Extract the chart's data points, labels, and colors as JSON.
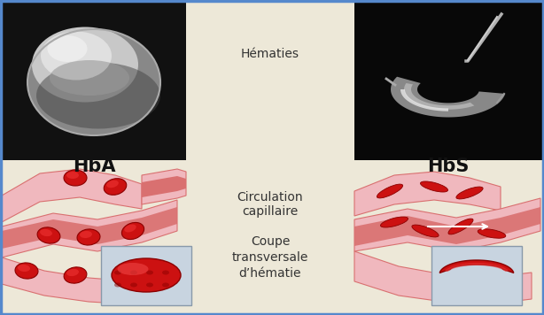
{
  "background_color": "#ede8d8",
  "border_color": "#5588cc",
  "title_hba": "HbA",
  "title_hbs": "HbS",
  "label_hematies": "Hématies",
  "label_circulation": "Circulation\ncapillaire",
  "label_coupe": "Coupe\ntransversale\nd’hématie",
  "top_left_bg": "#111111",
  "top_right_bg": "#080808",
  "vessel_light_pink": "#f0b8be",
  "vessel_mid_pink": "#d97070",
  "vessel_dark_red": "#c03030",
  "vessel_inner": "#cc2222",
  "rbc_red": "#cc1111",
  "rbc_dark": "#8b0000",
  "inset_bg": "#c8d4e0",
  "font_size_labels": 10,
  "font_size_titles": 15
}
